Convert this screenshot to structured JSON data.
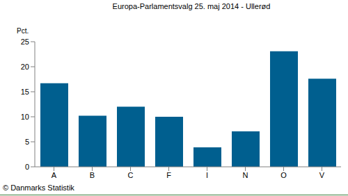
{
  "chart_data": {
    "type": "bar",
    "title": "Europa-Parlamentsvalg 25. maj 2014 - Ullerød",
    "y_label": "Pct.",
    "annotation": "© Danmarks Statistik",
    "categories": [
      "A",
      "B",
      "C",
      "F",
      "I",
      "N",
      "O",
      "V"
    ],
    "values": [
      16.7,
      10.2,
      12.0,
      10.0,
      3.9,
      7.1,
      23.1,
      17.6
    ],
    "color": "#005f8f",
    "ylim": [
      0,
      25
    ],
    "yticks": [
      0,
      5,
      10,
      15,
      20,
      25
    ],
    "grid": false
  }
}
